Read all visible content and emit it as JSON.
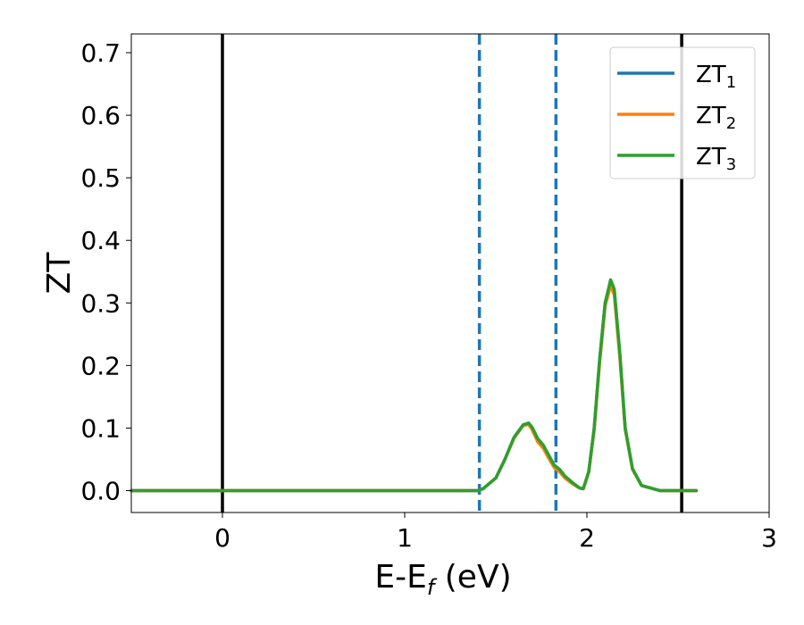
{
  "chart_data": {
    "type": "line",
    "title": "",
    "xlabel_main": "E-E",
    "xlabel_sub": "f",
    "xlabel_unit": " (eV)",
    "ylabel": "ZT",
    "xlim": [
      -0.5,
      3.0
    ],
    "ylim": [
      -0.035,
      0.73
    ],
    "xticks": [
      0,
      1,
      2,
      3
    ],
    "yticks": [
      0.0,
      0.1,
      0.2,
      0.3,
      0.4,
      0.5,
      0.6,
      0.7
    ],
    "xtick_labels": [
      "0",
      "1",
      "2",
      "3"
    ],
    "ytick_labels": [
      "0.0",
      "0.1",
      "0.2",
      "0.3",
      "0.4",
      "0.5",
      "0.6",
      "0.7"
    ],
    "grid": false,
    "legend_position": "top-right",
    "series": [
      {
        "name_main": "ZT",
        "name_sub": "1",
        "color": "#1f77b4",
        "x": [
          -0.5,
          0.0,
          1.0,
          1.4,
          1.43,
          1.5,
          1.55,
          1.6,
          1.65,
          1.68,
          1.7,
          1.73,
          1.76,
          1.79,
          1.82,
          1.85,
          1.88,
          1.92,
          1.96,
          1.98,
          2.01,
          2.04,
          2.07,
          2.1,
          2.13,
          2.15,
          2.18,
          2.21,
          2.25,
          2.3,
          2.4,
          2.6
        ],
        "y": [
          0.0,
          0.0,
          0.0,
          0.0,
          0.003,
          0.02,
          0.05,
          0.085,
          0.105,
          0.108,
          0.1,
          0.082,
          0.071,
          0.055,
          0.04,
          0.033,
          0.022,
          0.012,
          0.004,
          0.003,
          0.03,
          0.1,
          0.21,
          0.3,
          0.335,
          0.32,
          0.22,
          0.1,
          0.035,
          0.008,
          0.0,
          0.0
        ]
      },
      {
        "name_main": "ZT",
        "name_sub": "2",
        "color": "#ff7f0e",
        "x": [
          -0.5,
          0.0,
          1.0,
          1.4,
          1.43,
          1.5,
          1.55,
          1.6,
          1.65,
          1.68,
          1.7,
          1.73,
          1.76,
          1.79,
          1.82,
          1.85,
          1.88,
          1.92,
          1.96,
          1.98,
          2.01,
          2.04,
          2.07,
          2.1,
          2.13,
          2.15,
          2.18,
          2.21,
          2.25,
          2.3,
          2.4,
          2.6
        ],
        "y": [
          0.0,
          0.0,
          0.0,
          0.0,
          0.003,
          0.02,
          0.05,
          0.084,
          0.104,
          0.106,
          0.097,
          0.078,
          0.068,
          0.052,
          0.037,
          0.03,
          0.02,
          0.011,
          0.004,
          0.003,
          0.03,
          0.098,
          0.205,
          0.295,
          0.328,
          0.313,
          0.215,
          0.098,
          0.034,
          0.008,
          0.0,
          0.0
        ]
      },
      {
        "name_main": "ZT",
        "name_sub": "3",
        "color": "#2ca02c",
        "x": [
          -0.5,
          0.0,
          1.0,
          1.4,
          1.43,
          1.5,
          1.55,
          1.6,
          1.65,
          1.68,
          1.7,
          1.73,
          1.76,
          1.79,
          1.82,
          1.85,
          1.88,
          1.92,
          1.96,
          1.98,
          2.01,
          2.04,
          2.07,
          2.1,
          2.13,
          2.15,
          2.18,
          2.21,
          2.25,
          2.3,
          2.4,
          2.6
        ],
        "y": [
          0.0,
          0.0,
          0.0,
          0.0,
          0.003,
          0.02,
          0.05,
          0.085,
          0.105,
          0.108,
          0.101,
          0.083,
          0.073,
          0.057,
          0.041,
          0.034,
          0.023,
          0.013,
          0.004,
          0.003,
          0.03,
          0.1,
          0.21,
          0.3,
          0.337,
          0.322,
          0.222,
          0.1,
          0.035,
          0.008,
          0.0,
          0.0
        ]
      }
    ],
    "vlines": [
      {
        "x": 0.0,
        "style": "solid",
        "color": "#000000"
      },
      {
        "x": 2.52,
        "style": "solid",
        "color": "#000000"
      },
      {
        "x": 1.41,
        "style": "dashed",
        "color": "#1f77b4"
      },
      {
        "x": 1.83,
        "style": "dashed",
        "color": "#1f77b4"
      }
    ]
  }
}
